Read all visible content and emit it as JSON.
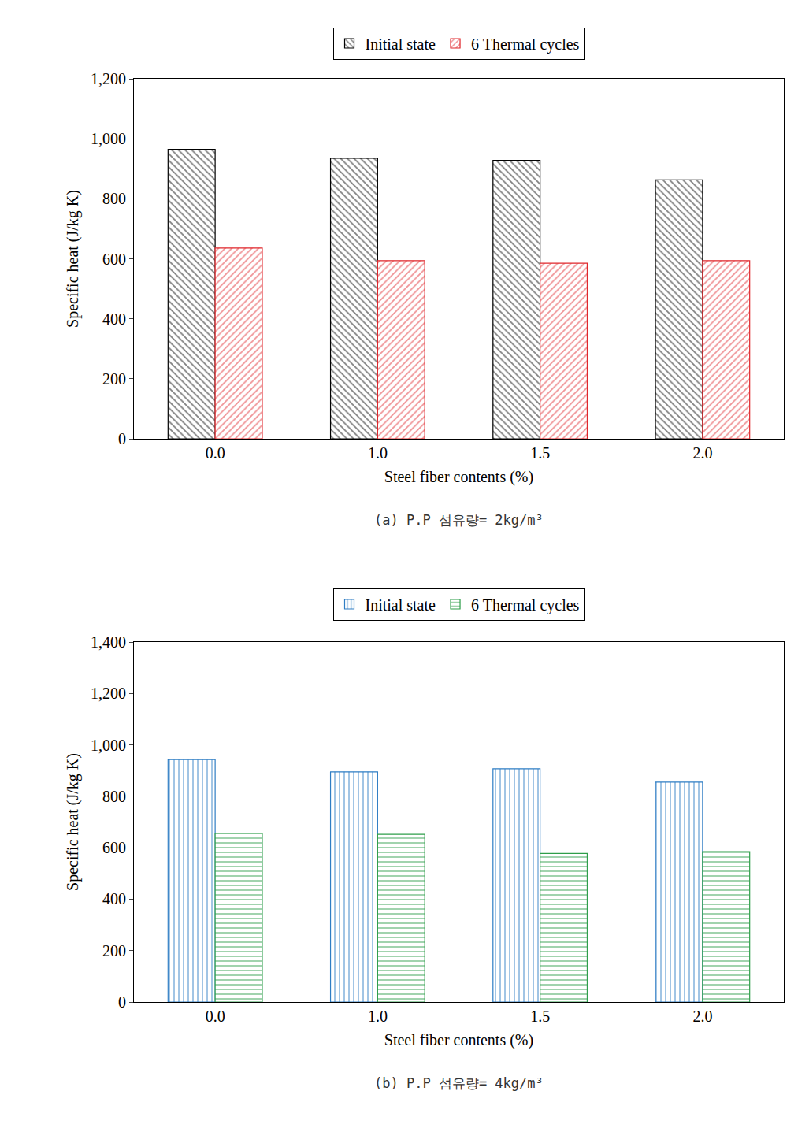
{
  "chart_data": [
    {
      "type": "bar",
      "title": "(a) P.P 섬유량= 2kg/m³",
      "x_label": "Steel fiber contents (%)",
      "y_label": "Specific heat (J/kg K)",
      "categories": [
        "0.0",
        "1.0",
        "1.5",
        "2.0"
      ],
      "series": [
        {
          "name": "Initial state",
          "color": "#000000",
          "marker": "\\",
          "values": [
            965,
            935,
            928,
            863
          ]
        },
        {
          "name": "6 Thermal cycles",
          "color": "#e0262b",
          "marker": "/",
          "values": [
            636,
            594,
            585,
            594
          ]
        }
      ],
      "ylim": [
        0,
        1200
      ],
      "yticks": [
        0,
        200,
        400,
        600,
        800,
        {
          "value": 1000,
          "label": "1,000"
        },
        {
          "value": 1200,
          "label": "1,200"
        }
      ],
      "grid": false,
      "legend": "top"
    },
    {
      "type": "bar",
      "title": "(b) P.P 섬유량= 4kg/m³",
      "x_label": "Steel fiber contents (%)",
      "y_label": "Specific heat (J/kg K)",
      "categories": [
        "0.0",
        "1.0",
        "1.5",
        "2.0"
      ],
      "series": [
        {
          "name": "Initial state",
          "color": "#2e7dc4",
          "marker": "|",
          "values": [
            943,
            895,
            907,
            855
          ]
        },
        {
          "name": "6 Thermal cycles",
          "color": "#2e9e4a",
          "marker": "-",
          "values": [
            657,
            652,
            578,
            585
          ]
        }
      ],
      "ylim": [
        0,
        1400
      ],
      "yticks": [
        0,
        200,
        400,
        600,
        800,
        {
          "value": 1000,
          "label": "1,000"
        },
        {
          "value": 1200,
          "label": "1,200"
        },
        {
          "value": 1400,
          "label": "1,400"
        }
      ],
      "grid": false,
      "legend": "top"
    }
  ]
}
